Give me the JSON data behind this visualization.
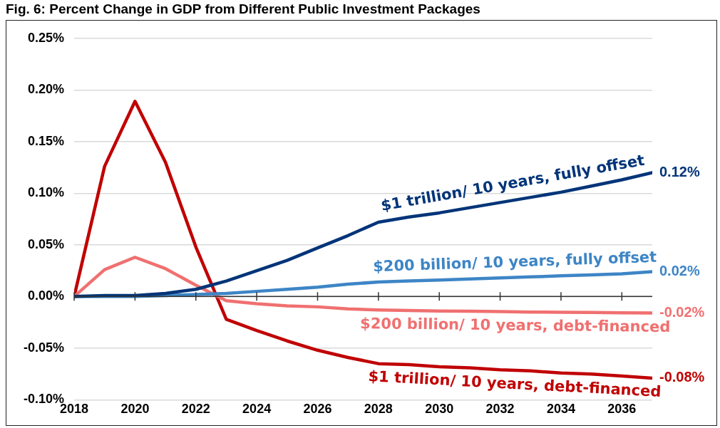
{
  "chart_data": {
    "type": "line",
    "title": "Fig. 6: Percent Change in GDP from Different Public Investment Packages",
    "x": [
      2018,
      2019,
      2020,
      2021,
      2022,
      2023,
      2024,
      2025,
      2026,
      2027,
      2028,
      2029,
      2030,
      2031,
      2032,
      2033,
      2034,
      2035,
      2036,
      2037
    ],
    "series": [
      {
        "name": "$1 trillion/ 10 years, fully offset",
        "color": "#003478",
        "values": [
          0,
          0.001,
          0.001,
          0.003,
          0.007,
          0.015,
          0.025,
          0.035,
          0.047,
          0.059,
          0.072,
          0.077,
          0.081,
          0.086,
          0.091,
          0.096,
          0.101,
          0.107,
          0.113,
          0.12
        ],
        "value_labels": [
          null,
          null,
          null,
          null,
          null,
          null,
          null,
          null,
          null,
          null,
          null,
          null,
          null,
          null,
          null,
          null,
          null,
          null,
          null,
          "0.12%"
        ]
      },
      {
        "name": "$200 billion/ 10 years, fully offset",
        "color": "#3d85c6",
        "values": [
          0,
          0,
          0,
          0.001,
          0.002,
          0.003,
          0.005,
          0.007,
          0.009,
          0.012,
          0.014,
          0.015,
          0.016,
          0.017,
          0.018,
          0.019,
          0.02,
          0.021,
          0.022,
          0.024
        ],
        "value_labels": [
          null,
          null,
          null,
          null,
          null,
          null,
          null,
          null,
          null,
          null,
          null,
          null,
          null,
          null,
          null,
          null,
          null,
          null,
          null,
          "0.02%"
        ]
      },
      {
        "name": "$200 billion/ 10 years, debt-financed",
        "color": "#f07070",
        "values": [
          0,
          0.026,
          0.038,
          0.027,
          0.011,
          -0.004,
          -0.007,
          -0.009,
          -0.01,
          -0.012,
          -0.013,
          -0.0135,
          -0.014,
          -0.0143,
          -0.0146,
          -0.015,
          -0.0153,
          -0.0155,
          -0.0158,
          -0.016
        ],
        "value_labels": [
          null,
          null,
          null,
          null,
          null,
          null,
          null,
          null,
          null,
          null,
          null,
          null,
          null,
          null,
          null,
          null,
          null,
          null,
          null,
          "-0.02%"
        ]
      },
      {
        "name": "$1 trillion/ 10 years, debt-financed",
        "color": "#c00000",
        "values": [
          0,
          0.126,
          0.189,
          0.13,
          0.048,
          -0.022,
          -0.033,
          -0.043,
          -0.052,
          -0.059,
          -0.065,
          -0.066,
          -0.068,
          -0.069,
          -0.071,
          -0.072,
          -0.074,
          -0.075,
          -0.077,
          -0.079
        ],
        "value_labels": [
          null,
          null,
          null,
          null,
          null,
          null,
          null,
          null,
          null,
          null,
          null,
          null,
          null,
          null,
          null,
          null,
          null,
          null,
          null,
          "-0.08%"
        ]
      }
    ],
    "xlim": [
      2018,
      2037
    ],
    "xticks": [
      2018,
      2020,
      2022,
      2024,
      2026,
      2028,
      2030,
      2032,
      2034,
      2036
    ],
    "ylim": [
      -0.1,
      0.25
    ],
    "yticks": [
      {
        "value": -0.1,
        "label": "-0.10%"
      },
      {
        "value": -0.05,
        "label": "-0.05%"
      },
      {
        "value": 0,
        "label": "0.00%"
      },
      {
        "value": 0.05,
        "label": "0.05%"
      },
      {
        "value": 0.1,
        "label": "0.10%"
      },
      {
        "value": 0.15,
        "label": "0.15%"
      },
      {
        "value": 0.2,
        "label": "0.20%"
      },
      {
        "value": 0.25,
        "label": "0.25%"
      }
    ],
    "grid": "y",
    "legend": false,
    "marker": "none",
    "line_style": "solid"
  }
}
